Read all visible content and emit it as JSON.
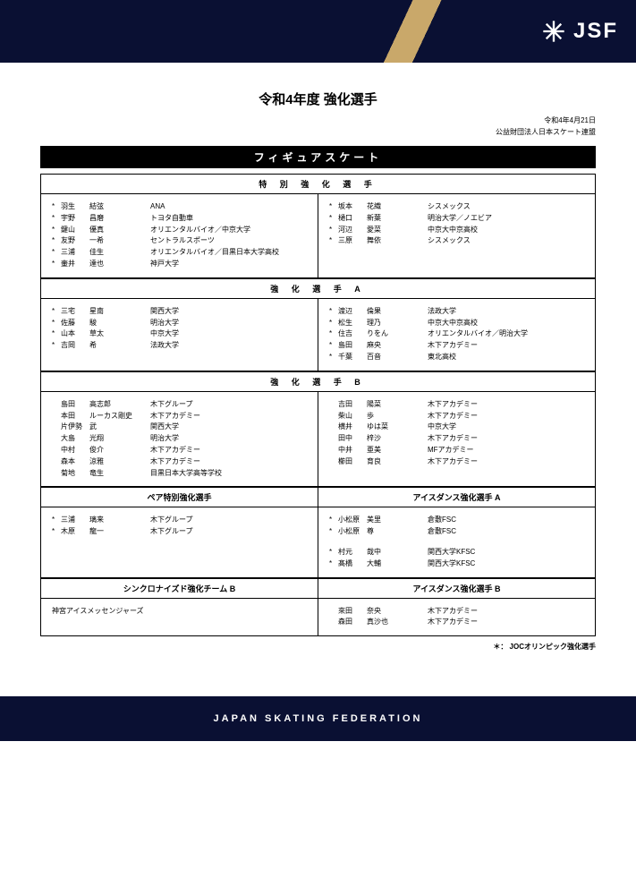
{
  "header": {
    "logo_text": "JSF"
  },
  "main_title": "令和4年度 強化選手",
  "date": "令和4年4月21日",
  "organization": "公益財団法人日本スケート連盟",
  "discipline": "フィギュアスケート",
  "sec_special": {
    "title": "特 別 強 化 選 手",
    "left": [
      {
        "s": "*",
        "sn": "羽生",
        "gn": "結弦",
        "af": "ANA"
      },
      {
        "s": "*",
        "sn": "宇野",
        "gn": "昌磨",
        "af": "トヨタ自動車"
      },
      {
        "s": "*",
        "sn": "鍵山",
        "gn": "優真",
        "af": "オリエンタルバイオ／中京大学"
      },
      {
        "s": "*",
        "sn": "友野",
        "gn": "一希",
        "af": "セントラルスポーツ"
      },
      {
        "s": "*",
        "sn": "三浦",
        "gn": "佳生",
        "af": "オリエンタルバイオ／目黒日本大学高校"
      },
      {
        "s": "*",
        "sn": "壷井",
        "gn": "達也",
        "af": "神戸大学"
      }
    ],
    "right": [
      {
        "s": "*",
        "sn": "坂本",
        "gn": "花織",
        "af": "シスメックス"
      },
      {
        "s": "*",
        "sn": "樋口",
        "gn": "新葉",
        "af": "明治大学／ノエビア"
      },
      {
        "s": "*",
        "sn": "河辺",
        "gn": "愛菜",
        "af": "中京大中京高校"
      },
      {
        "s": "*",
        "sn": "三原",
        "gn": "舞依",
        "af": "シスメックス"
      }
    ]
  },
  "sec_a": {
    "title": "強 化 選 手 A",
    "left": [
      {
        "s": "*",
        "sn": "三宅",
        "gn": "星南",
        "af": "関西大学"
      },
      {
        "s": "*",
        "sn": "佐藤",
        "gn": "駿",
        "af": "明治大学"
      },
      {
        "s": "*",
        "sn": "山本",
        "gn": "草太",
        "af": "中京大学"
      },
      {
        "s": "*",
        "sn": "吉岡",
        "gn": "希",
        "af": "法政大学"
      }
    ],
    "right": [
      {
        "s": "*",
        "sn": "渡辺",
        "gn": "倫果",
        "af": "法政大学"
      },
      {
        "s": "*",
        "sn": "松生",
        "gn": "理乃",
        "af": "中京大中京高校"
      },
      {
        "s": "*",
        "sn": "住吉",
        "gn": "りをん",
        "af": "オリエンタルバイオ／明治大学"
      },
      {
        "s": "*",
        "sn": "島田",
        "gn": "麻央",
        "af": "木下アカデミー"
      },
      {
        "s": "*",
        "sn": "千葉",
        "gn": "百音",
        "af": "東北高校"
      }
    ]
  },
  "sec_b": {
    "title": "強 化 選 手 B",
    "left": [
      {
        "s": "",
        "sn": "島田",
        "gn": "高志郎",
        "af": "木下グループ"
      },
      {
        "s": "",
        "sn": "本田",
        "gn": "ルーカス剛史",
        "af": "木下アカデミー"
      },
      {
        "s": "",
        "sn": "片伊勢",
        "gn": "武",
        "af": "関西大学"
      },
      {
        "s": "",
        "sn": "大島",
        "gn": "光翔",
        "af": "明治大学"
      },
      {
        "s": "",
        "sn": "中村",
        "gn": "俊介",
        "af": "木下アカデミー"
      },
      {
        "s": "",
        "sn": "森本",
        "gn": "涼雅",
        "af": "木下アカデミー"
      },
      {
        "s": "",
        "sn": "菊地",
        "gn": "竜生",
        "af": "目黒日本大学高等学校"
      }
    ],
    "right": [
      {
        "s": "",
        "sn": "吉田",
        "gn": "陽菜",
        "af": "木下アカデミー"
      },
      {
        "s": "",
        "sn": "柴山",
        "gn": "歩",
        "af": "木下アカデミー"
      },
      {
        "s": "",
        "sn": "横井",
        "gn": "ゆは菜",
        "af": "中京大学"
      },
      {
        "s": "",
        "sn": "田中",
        "gn": "梓沙",
        "af": "木下アカデミー"
      },
      {
        "s": "",
        "sn": "中井",
        "gn": "亜美",
        "af": "MFアカデミー"
      },
      {
        "s": "",
        "sn": "櫛田",
        "gn": "育良",
        "af": "木下アカデミー"
      }
    ]
  },
  "sec_pair_iceA": {
    "left_title": "ペア特別強化選手",
    "right_title": "アイスダンス強化選手 A",
    "left": [
      {
        "s": "*",
        "sn": "三浦",
        "gn": "璃来",
        "af": "木下グループ"
      },
      {
        "s": "*",
        "sn": "木原",
        "gn": "龍一",
        "af": "木下グループ"
      }
    ],
    "right_g1": [
      {
        "s": "*",
        "sn": "小松原",
        "gn": "美里",
        "af": "倉敷FSC"
      },
      {
        "s": "*",
        "sn": "小松原",
        "gn": "尊",
        "af": "倉敷FSC"
      }
    ],
    "right_g2": [
      {
        "s": "*",
        "sn": "村元",
        "gn": "哉中",
        "af": "関西大学KFSC"
      },
      {
        "s": "*",
        "sn": "髙橋",
        "gn": "大輔",
        "af": "関西大学KFSC"
      }
    ]
  },
  "sec_sync_iceB": {
    "left_title": "シンクロナイズド強化チーム B",
    "right_title": "アイスダンス強化選手 B",
    "left": [
      {
        "s": "",
        "sn": "",
        "gn": "神宮アイスメッセンジャーズ",
        "af": ""
      }
    ],
    "right": [
      {
        "s": "",
        "sn": "來田",
        "gn": "奈央",
        "af": "木下アカデミー"
      },
      {
        "s": "",
        "sn": "森田",
        "gn": "真沙也",
        "af": "木下アカデミー"
      }
    ]
  },
  "footnote": "＊： JOCオリンピック強化選手",
  "footer": "JAPAN SKATING FEDERATION",
  "colors": {
    "navy": "#0a1033",
    "gold": "#c9a86a"
  }
}
